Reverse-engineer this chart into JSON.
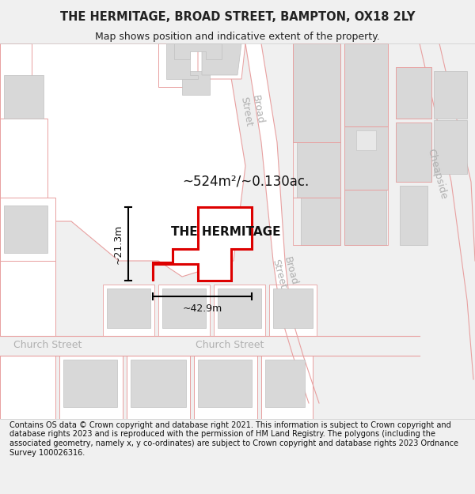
{
  "title": "THE HERMITAGE, BROAD STREET, BAMPTON, OX18 2LY",
  "subtitle": "Map shows position and indicative extent of the property.",
  "footer": "Contains OS data © Crown copyright and database right 2021. This information is subject to Crown copyright and database rights 2023 and is reproduced with the permission of HM Land Registry. The polygons (including the associated geometry, namely x, y co-ordinates) are subject to Crown copyright and database rights 2023 Ordnance Survey 100026316.",
  "area_text": "~524m²/~0.130ac.",
  "label": "THE HERMITAGE",
  "dim_h": "~21.3m",
  "dim_w": "~42.9m",
  "figsize": [
    6.0,
    6.25
  ],
  "dpi": 100,
  "map_bg": "#ffffff",
  "road_outline_color": "#e8a0a0",
  "road_fill_color": "#f5e8e8",
  "building_fill": "#d8d8d8",
  "building_edge": "#c0c0c0",
  "highlight_color": "#dd0000",
  "street_label_color": "#b0b0b0",
  "title_bg": "#f0f0f0",
  "footer_bg": "#f0f0f0"
}
